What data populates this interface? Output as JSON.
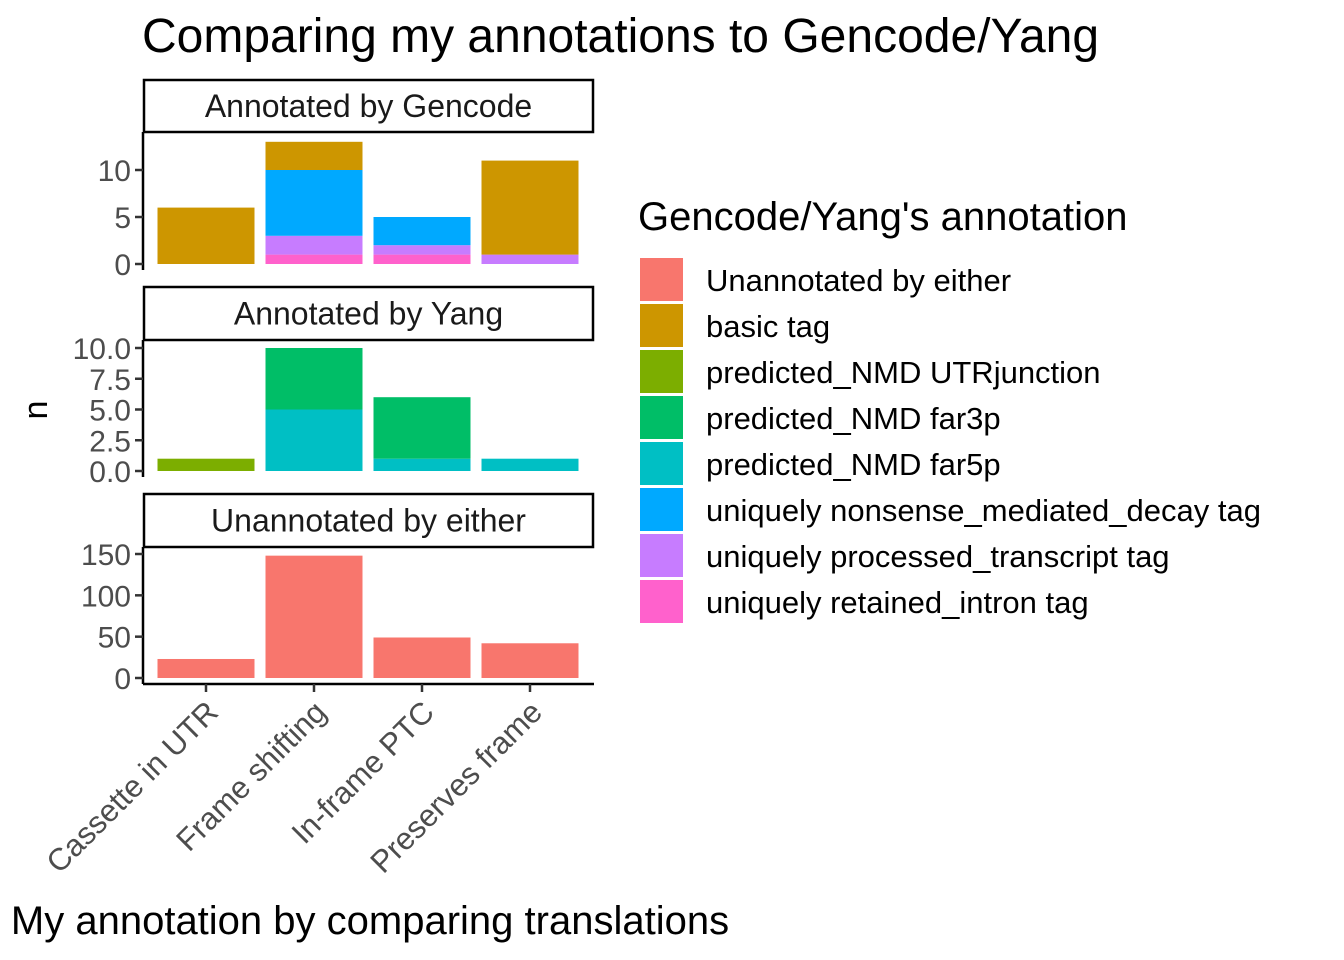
{
  "chart_data": {
    "type": "bar",
    "stacked": true,
    "title": "Comparing my annotations to Gencode/Yang",
    "xlabel": "My annotation by comparing translations",
    "ylabel": "n",
    "categories": [
      "Cassette in UTR",
      "Frame shifting",
      "In-frame PTC",
      "Preserves frame"
    ],
    "legend": {
      "title": "Gencode/Yang's annotation",
      "position": "right",
      "entries": [
        {
          "name": "Unannotated by either",
          "color": "#F8766D"
        },
        {
          "name": "basic tag",
          "color": "#CD9600"
        },
        {
          "name": "predicted_NMD UTRjunction",
          "color": "#7CAE00"
        },
        {
          "name": "predicted_NMD far3p",
          "color": "#00BE67"
        },
        {
          "name": "predicted_NMD far5p",
          "color": "#00BFC4"
        },
        {
          "name": "uniquely nonsense_mediated_decay tag",
          "color": "#00A9FF"
        },
        {
          "name": "uniquely processed_transcript tag",
          "color": "#C77CFF"
        },
        {
          "name": "uniquely retained_intron tag",
          "color": "#FF61CC"
        }
      ]
    },
    "grid": false,
    "panels": [
      {
        "label": "Annotated by Gencode",
        "ylim": [
          0,
          13
        ],
        "yticks": [
          "0",
          "5",
          "10"
        ],
        "ytick_values": [
          0,
          5,
          10
        ],
        "series": [
          {
            "name": "uniquely retained_intron tag",
            "values": [
              0,
              1,
              1,
              0
            ]
          },
          {
            "name": "uniquely processed_transcript tag",
            "values": [
              0,
              2,
              1,
              1
            ]
          },
          {
            "name": "uniquely nonsense_mediated_decay tag",
            "values": [
              0,
              7,
              3,
              0
            ]
          },
          {
            "name": "basic tag",
            "values": [
              6,
              3,
              0,
              10
            ]
          }
        ]
      },
      {
        "label": "Annotated by Yang",
        "ylim": [
          0,
          10
        ],
        "yticks": [
          "0.0",
          "2.5",
          "5.0",
          "7.5",
          "10.0"
        ],
        "ytick_values": [
          0,
          2.5,
          5,
          7.5,
          10
        ],
        "series": [
          {
            "name": "predicted_NMD far5p",
            "values": [
              0,
              5,
              1,
              1
            ]
          },
          {
            "name": "predicted_NMD far3p",
            "values": [
              0,
              5,
              5,
              0
            ]
          },
          {
            "name": "predicted_NMD UTRjunction",
            "values": [
              1,
              0,
              0,
              0
            ]
          }
        ]
      },
      {
        "label": "Unannotated by either",
        "ylim": [
          0,
          150
        ],
        "yticks": [
          "0",
          "50",
          "100",
          "150"
        ],
        "ytick_values": [
          0,
          50,
          100,
          150
        ],
        "series": [
          {
            "name": "Unannotated by either",
            "values": [
              23,
              148,
              49,
              42
            ]
          }
        ]
      }
    ]
  }
}
